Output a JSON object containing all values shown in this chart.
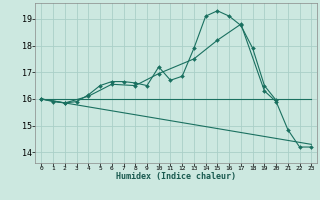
{
  "xlabel": "Humidex (Indice chaleur)",
  "background_color": "#cce8e0",
  "grid_color": "#aacfc8",
  "line_color": "#1a7060",
  "xlim": [
    -0.5,
    23.5
  ],
  "ylim": [
    13.6,
    19.6
  ],
  "yticks": [
    14,
    15,
    16,
    17,
    18,
    19
  ],
  "xtick_labels": [
    "0",
    "1",
    "2",
    "3",
    "4",
    "5",
    "6",
    "7",
    "8",
    "9",
    "10",
    "11",
    "12",
    "13",
    "14",
    "15",
    "16",
    "17",
    "18",
    "19",
    "20",
    "21",
    "22",
    "23"
  ],
  "xtick_positions": [
    0,
    1,
    2,
    3,
    4,
    5,
    6,
    7,
    8,
    9,
    10,
    11,
    12,
    13,
    14,
    15,
    16,
    17,
    18,
    19,
    20,
    21,
    22,
    23
  ],
  "series": [
    {
      "x": [
        0,
        1,
        2,
        3,
        4,
        5,
        6,
        7,
        8,
        9,
        10,
        11,
        12,
        13,
        14,
        15,
        16,
        17,
        18,
        19,
        20
      ],
      "y": [
        16.0,
        15.9,
        15.85,
        15.9,
        16.15,
        16.5,
        16.65,
        16.65,
        16.6,
        16.5,
        17.2,
        16.7,
        16.85,
        17.9,
        19.1,
        19.3,
        19.1,
        18.75,
        17.9,
        16.5,
        15.95
      ],
      "has_markers": true
    },
    {
      "x": [
        0,
        2,
        4,
        6,
        8,
        10,
        13,
        15,
        17,
        19,
        20,
        21,
        22,
        23
      ],
      "y": [
        16.0,
        15.85,
        16.1,
        16.55,
        16.5,
        16.95,
        17.5,
        18.2,
        18.8,
        16.3,
        15.9,
        14.85,
        14.2,
        14.2
      ],
      "has_markers": true
    },
    {
      "x": [
        0,
        23
      ],
      "y": [
        16.0,
        16.0
      ],
      "has_markers": false
    },
    {
      "x": [
        0,
        23
      ],
      "y": [
        16.0,
        14.3
      ],
      "has_markers": false
    }
  ]
}
